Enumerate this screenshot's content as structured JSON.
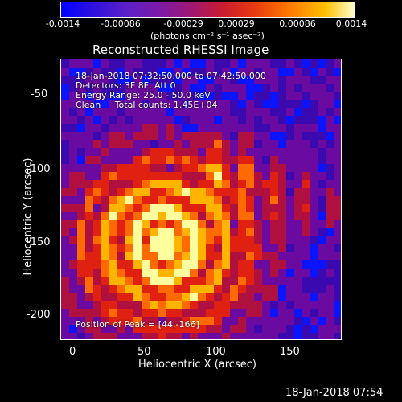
{
  "colorbar": {
    "ticks": [
      "-0.0014",
      "-0.00086",
      "-0.00029",
      "0.00029",
      "0.00086",
      "0.0014"
    ],
    "units": "(photons cm⁻² s⁻¹ asec⁻²)"
  },
  "image": {
    "title": "Reconstructed RHESSI Image",
    "time_range": "18-Jan-2018 07:32:50.000 to 07:42:50.000",
    "detectors": "Detectors: 3F 8F, Att 0",
    "energy_range": "Energy Range: 25.0 - 50.0 keV",
    "clean_counts": "Clean     Total counts: 1.45E+04",
    "peak_position": "Position of Peak = [44,-166]",
    "x_label": "Heliocentric X (arcsec)",
    "y_label": "Heliocentric Y (arcsec)",
    "x_ticks": [
      "0",
      "50",
      "100",
      "150"
    ],
    "y_ticks": [
      "-50",
      "-100",
      "-150",
      "-200"
    ],
    "colormap": [
      "#0a14ff",
      "#3a0ab0",
      "#6a0aa0",
      "#b01040",
      "#e02010",
      "#ff6a00",
      "#ffb400",
      "#ffffa0"
    ]
  },
  "footer": {
    "timestamp": "18-Jan-2018 07:54"
  }
}
